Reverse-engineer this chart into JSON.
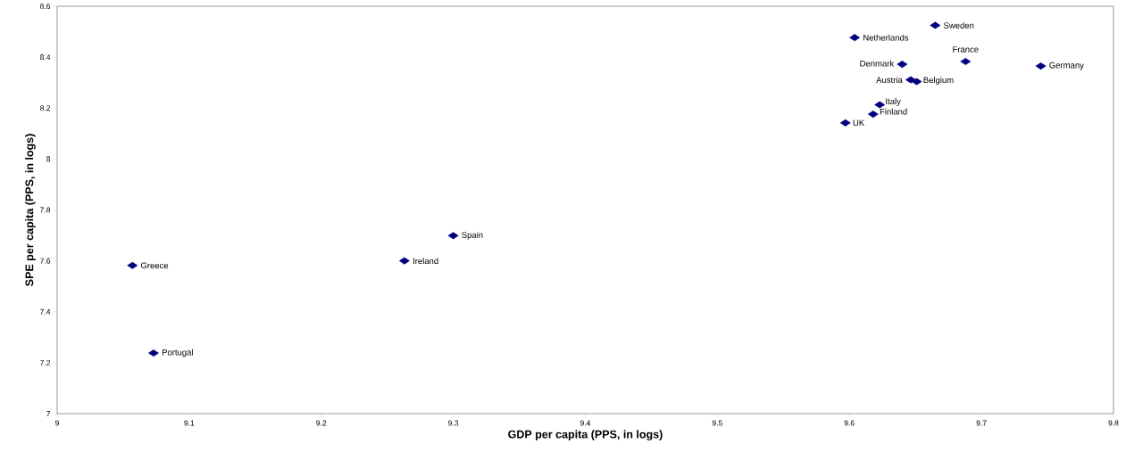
{
  "chart_data": {
    "type": "scatter",
    "xlabel": "GDP per capita (PPS, in logs)",
    "ylabel": "SPE per capita (PPS, in logs)",
    "x": [
      9.665,
      9.604,
      9.688,
      9.64,
      9.745,
      9.6465,
      9.651,
      9.623,
      9.618,
      9.597,
      9.057,
      9.073,
      9.263,
      9.3
    ],
    "series": [
      {
        "color": "#000080",
        "values": [
          8.525,
          8.477,
          8.383,
          8.372,
          8.365,
          8.311,
          8.304,
          8.213,
          8.176,
          8.142,
          7.582,
          7.238,
          7.6,
          7.699
        ]
      }
    ],
    "annotations": [
      {
        "text": "Sweden",
        "x": 9.665,
        "y": 8.525
      },
      {
        "text": "Netherlands",
        "x": 9.604,
        "y": 8.477
      },
      {
        "text": "France",
        "x": 9.688,
        "y": 8.383
      },
      {
        "text": "Denmark",
        "x": 9.64,
        "y": 8.372
      },
      {
        "text": "Germany",
        "x": 9.745,
        "y": 8.365
      },
      {
        "text": "Austria",
        "x": 9.6465,
        "y": 8.311
      },
      {
        "text": "Belgium",
        "x": 9.651,
        "y": 8.304
      },
      {
        "text": "Italy",
        "x": 9.623,
        "y": 8.213
      },
      {
        "text": "Finland",
        "x": 9.618,
        "y": 8.176
      },
      {
        "text": "UK",
        "x": 9.597,
        "y": 8.142
      },
      {
        "text": "Greece",
        "x": 9.057,
        "y": 7.582
      },
      {
        "text": "Portugal",
        "x": 9.073,
        "y": 7.238
      },
      {
        "text": "Ireland",
        "x": 9.263,
        "y": 7.6
      },
      {
        "text": "Spain",
        "x": 9.3,
        "y": 7.699
      }
    ],
    "xlim": [
      9,
      9.8
    ],
    "ylim": [
      7,
      8.6
    ],
    "xticks": [
      9,
      9.1,
      9.2,
      9.3,
      9.4,
      9.5,
      9.6,
      9.7,
      9.8
    ],
    "yticks": [
      7,
      7.2,
      7.4,
      7.6,
      7.8,
      8,
      8.2,
      8.4,
      8.6
    ],
    "marker": "diamond",
    "grid": false,
    "legend": false
  }
}
